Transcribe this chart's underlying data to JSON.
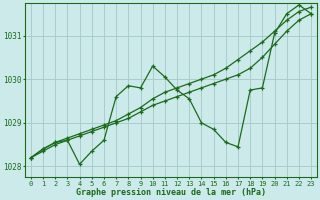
{
  "title": "Graphe pression niveau de la mer (hPa)",
  "bg_color": "#cceaea",
  "grid_color": "#aacccc",
  "line_color": "#1a6b1a",
  "xlim_min": -0.5,
  "xlim_max": 23.5,
  "ylim_min": 1027.75,
  "ylim_max": 1031.75,
  "yticks": [
    1028,
    1029,
    1030,
    1031
  ],
  "xticks": [
    0,
    1,
    2,
    3,
    4,
    5,
    6,
    7,
    8,
    9,
    10,
    11,
    12,
    13,
    14,
    15,
    16,
    17,
    18,
    19,
    20,
    21,
    22,
    23
  ],
  "series1_x": [
    0,
    1,
    2,
    3,
    4,
    5,
    6,
    7,
    8,
    9,
    10,
    11,
    12,
    13,
    14,
    15,
    16,
    17,
    18,
    19,
    20,
    21,
    22,
    23
  ],
  "series1_y": [
    1028.2,
    1028.35,
    1028.5,
    1028.6,
    1028.7,
    1028.8,
    1028.9,
    1029.0,
    1029.1,
    1029.25,
    1029.4,
    1029.5,
    1029.6,
    1029.7,
    1029.8,
    1029.9,
    1030.0,
    1030.1,
    1030.25,
    1030.5,
    1030.8,
    1031.1,
    1031.35,
    1031.5
  ],
  "series2_x": [
    0,
    1,
    2,
    3,
    4,
    5,
    6,
    7,
    8,
    9,
    10,
    11,
    12,
    13,
    14,
    15,
    16,
    17,
    18,
    19,
    20,
    21,
    22,
    23
  ],
  "series2_y": [
    1028.2,
    1028.4,
    1028.55,
    1028.65,
    1028.75,
    1028.85,
    1028.95,
    1029.05,
    1029.2,
    1029.35,
    1029.55,
    1029.7,
    1029.8,
    1029.9,
    1030.0,
    1030.1,
    1030.25,
    1030.45,
    1030.65,
    1030.85,
    1031.1,
    1031.35,
    1031.55,
    1031.65
  ],
  "series3_x": [
    0,
    1,
    2,
    3,
    4,
    5,
    6,
    7,
    8,
    9,
    10,
    11,
    12,
    13,
    14,
    15,
    16,
    17,
    18,
    19,
    20,
    21,
    22,
    23
  ],
  "series3_y": [
    1028.2,
    1028.4,
    1028.55,
    1028.6,
    1028.05,
    1028.35,
    1028.6,
    1029.6,
    1029.85,
    1029.8,
    1030.3,
    1030.05,
    1029.75,
    1029.55,
    1029.0,
    1028.85,
    1028.55,
    1028.45,
    1029.75,
    1029.8,
    1031.05,
    1031.5,
    1031.7,
    1031.5
  ]
}
